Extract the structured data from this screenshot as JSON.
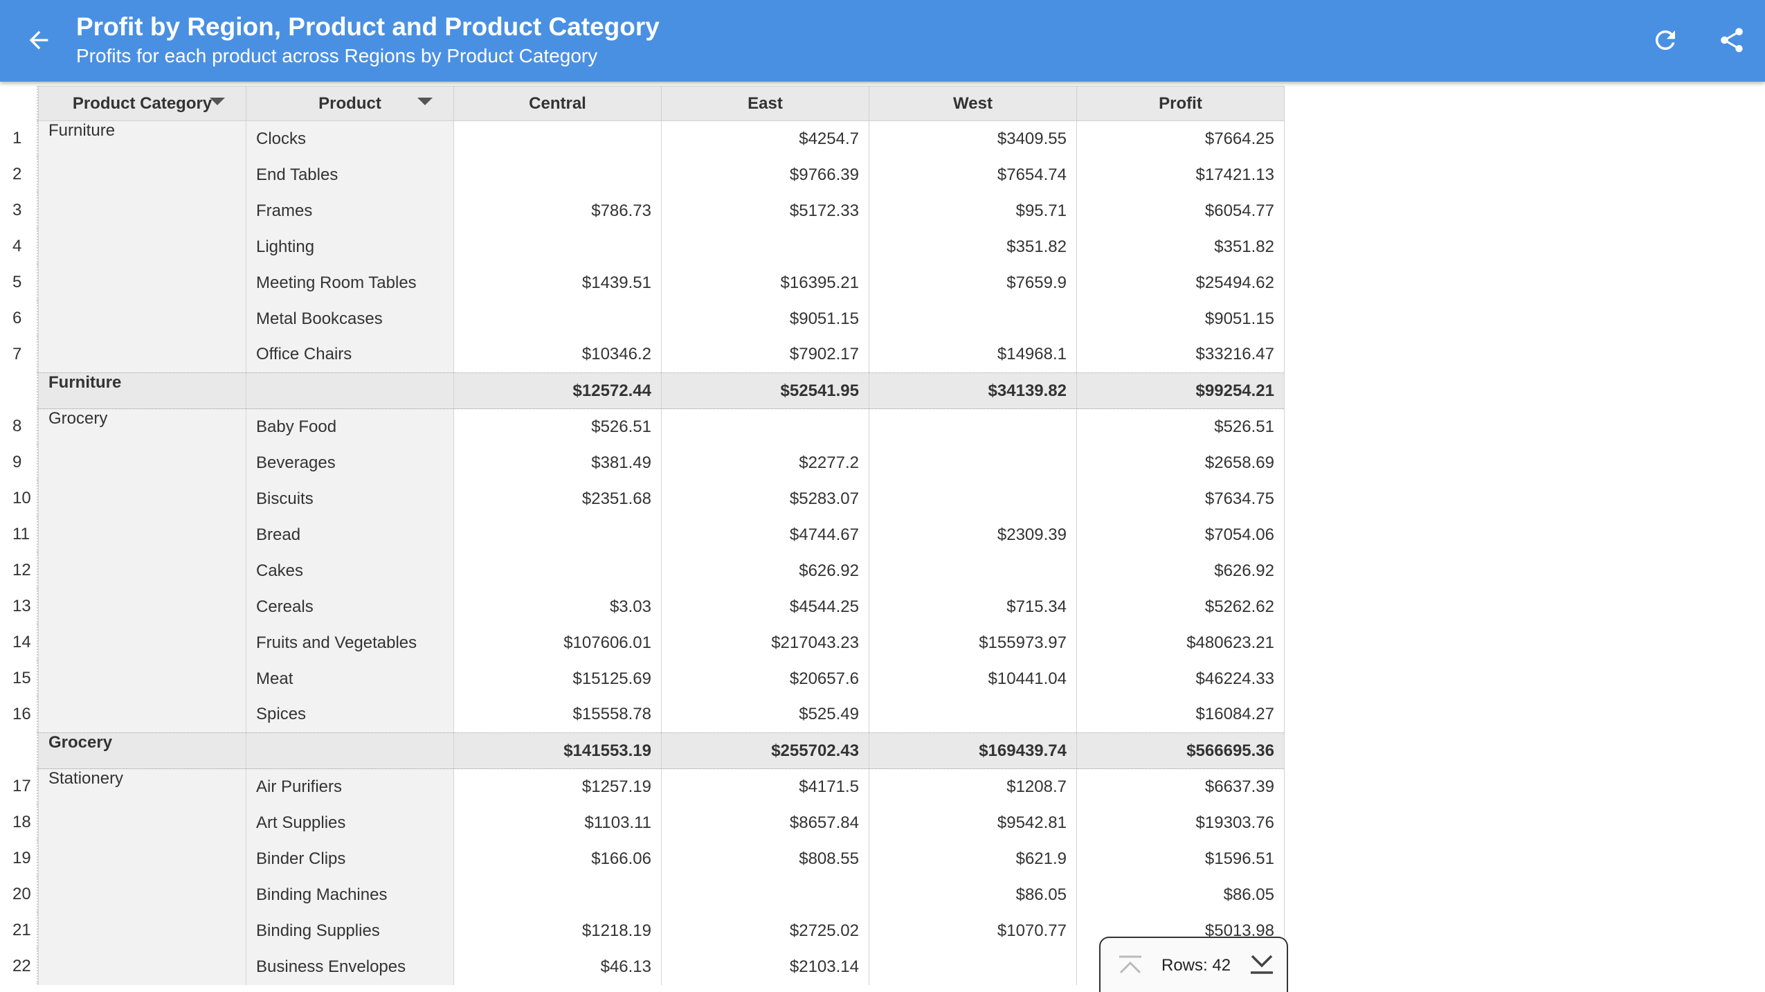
{
  "header": {
    "title": "Profit by Region, Product and Product Category",
    "subtitle": "Profits for each product across Regions by Product Category",
    "back_icon": "arrow-left-icon",
    "refresh_icon": "refresh-icon",
    "share_icon": "share-icon",
    "bar_color": "#4a90e2"
  },
  "table": {
    "columns": [
      "Product Category",
      "Product",
      "Central",
      "East",
      "West",
      "Profit"
    ],
    "groups": [
      {
        "category": "Furniture",
        "rows": [
          {
            "num": "1",
            "product": "Clocks",
            "central": "",
            "east": "$4254.7",
            "west": "$3409.55",
            "profit": "$7664.25"
          },
          {
            "num": "2",
            "product": "End Tables",
            "central": "",
            "east": "$9766.39",
            "west": "$7654.74",
            "profit": "$17421.13"
          },
          {
            "num": "3",
            "product": "Frames",
            "central": "$786.73",
            "east": "$5172.33",
            "west": "$95.71",
            "profit": "$6054.77"
          },
          {
            "num": "4",
            "product": "Lighting",
            "central": "",
            "east": "",
            "west": "$351.82",
            "profit": "$351.82"
          },
          {
            "num": "5",
            "product": "Meeting Room Tables",
            "central": "$1439.51",
            "east": "$16395.21",
            "west": "$7659.9",
            "profit": "$25494.62"
          },
          {
            "num": "6",
            "product": "Metal Bookcases",
            "central": "",
            "east": "$9051.15",
            "west": "",
            "profit": "$9051.15"
          },
          {
            "num": "7",
            "product": "Office Chairs",
            "central": "$10346.2",
            "east": "$7902.17",
            "west": "$14968.1",
            "profit": "$33216.47"
          }
        ],
        "subtotal": {
          "label": "Furniture",
          "central": "$12572.44",
          "east": "$52541.95",
          "west": "$34139.82",
          "profit": "$99254.21"
        }
      },
      {
        "category": "Grocery",
        "rows": [
          {
            "num": "8",
            "product": "Baby Food",
            "central": "$526.51",
            "east": "",
            "west": "",
            "profit": "$526.51"
          },
          {
            "num": "9",
            "product": "Beverages",
            "central": "$381.49",
            "east": "$2277.2",
            "west": "",
            "profit": "$2658.69"
          },
          {
            "num": "10",
            "product": "Biscuits",
            "central": "$2351.68",
            "east": "$5283.07",
            "west": "",
            "profit": "$7634.75"
          },
          {
            "num": "11",
            "product": "Bread",
            "central": "",
            "east": "$4744.67",
            "west": "$2309.39",
            "profit": "$7054.06"
          },
          {
            "num": "12",
            "product": "Cakes",
            "central": "",
            "east": "$626.92",
            "west": "",
            "profit": "$626.92"
          },
          {
            "num": "13",
            "product": "Cereals",
            "central": "$3.03",
            "east": "$4544.25",
            "west": "$715.34",
            "profit": "$5262.62"
          },
          {
            "num": "14",
            "product": "Fruits and Vegetables",
            "central": "$107606.01",
            "east": "$217043.23",
            "west": "$155973.97",
            "profit": "$480623.21"
          },
          {
            "num": "15",
            "product": "Meat",
            "central": "$15125.69",
            "east": "$20657.6",
            "west": "$10441.04",
            "profit": "$46224.33"
          },
          {
            "num": "16",
            "product": "Spices",
            "central": "$15558.78",
            "east": "$525.49",
            "west": "",
            "profit": "$16084.27"
          }
        ],
        "subtotal": {
          "label": "Grocery",
          "central": "$141553.19",
          "east": "$255702.43",
          "west": "$169439.74",
          "profit": "$566695.36"
        }
      },
      {
        "category": "Stationery",
        "rows": [
          {
            "num": "17",
            "product": "Air Purifiers",
            "central": "$1257.19",
            "east": "$4171.5",
            "west": "$1208.7",
            "profit": "$6637.39"
          },
          {
            "num": "18",
            "product": "Art Supplies",
            "central": "$1103.11",
            "east": "$8657.84",
            "west": "$9542.81",
            "profit": "$19303.76"
          },
          {
            "num": "19",
            "product": "Binder Clips",
            "central": "$166.06",
            "east": "$808.55",
            "west": "$621.9",
            "profit": "$1596.51"
          },
          {
            "num": "20",
            "product": "Binding Machines",
            "central": "",
            "east": "",
            "west": "$86.05",
            "profit": "$86.05"
          },
          {
            "num": "21",
            "product": "Binding Supplies",
            "central": "$1218.19",
            "east": "$2725.02",
            "west": "$1070.77",
            "profit": "$5013.98"
          },
          {
            "num": "22",
            "product": "Business Envelopes",
            "central": "$46.13",
            "east": "$2103.14",
            "west": "",
            "profit": ""
          }
        ],
        "subtotal": null
      }
    ]
  },
  "rows_panel": {
    "label": "Rows: 42",
    "top_icon": "scroll-to-top-icon",
    "bottom_icon": "scroll-to-bottom-icon"
  }
}
